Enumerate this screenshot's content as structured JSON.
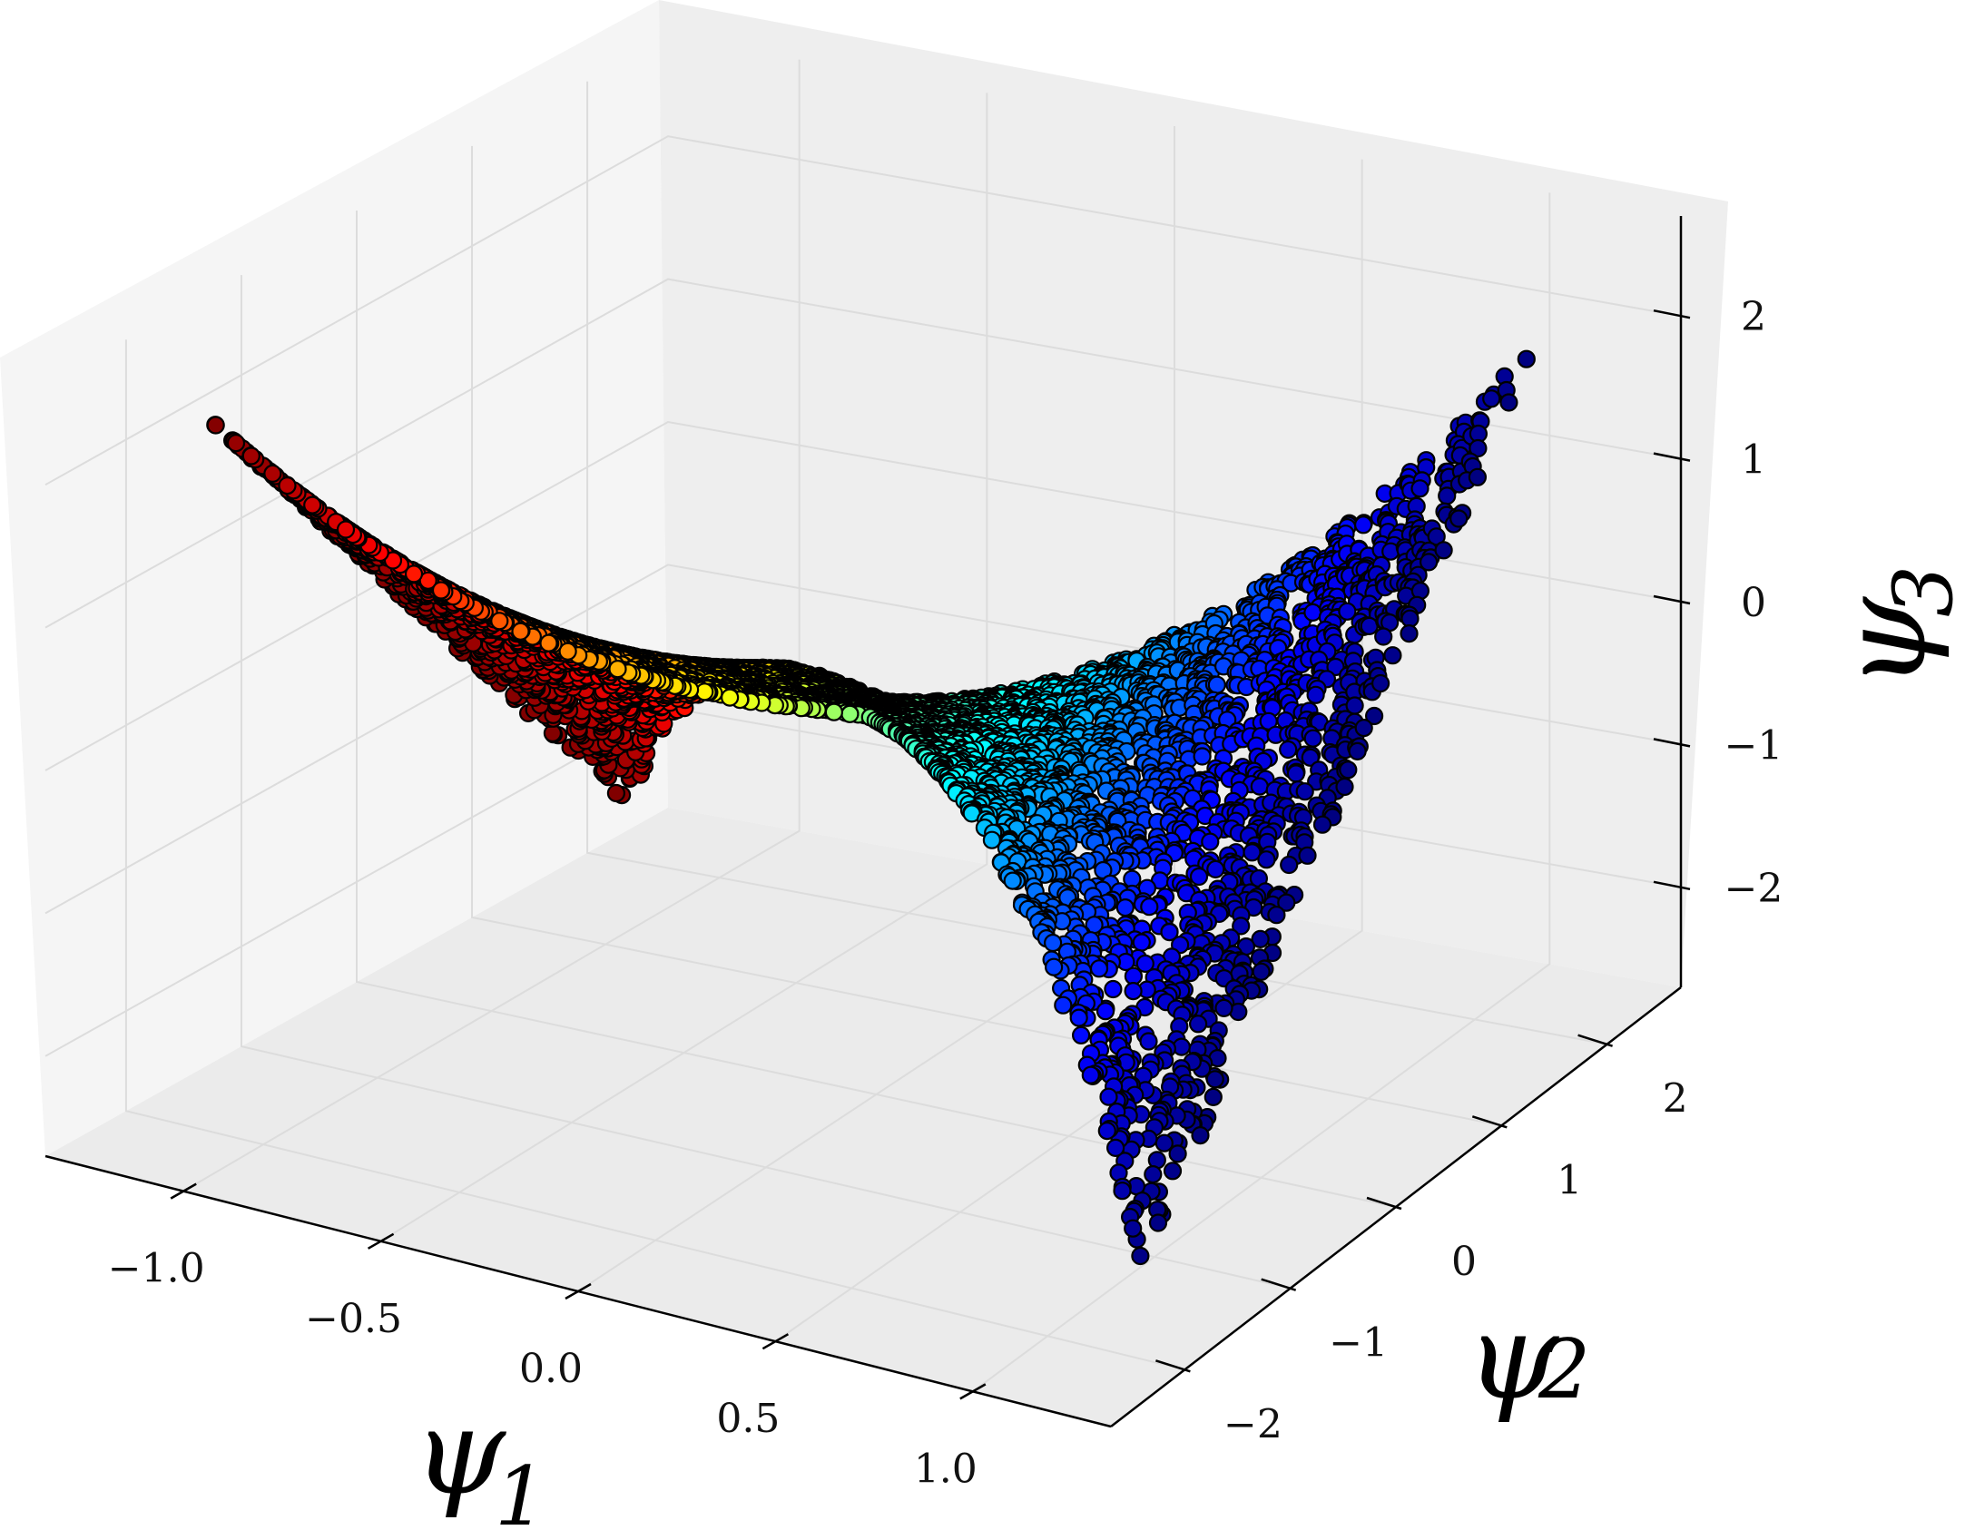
{
  "chart_data": {
    "type": "scatter",
    "projection": "3d",
    "title": "",
    "axes": {
      "x": {
        "label": "ψ",
        "subscript": "1",
        "ticks": [
          "−1.0",
          "−0.5",
          "0.0",
          "0.5",
          "1.0"
        ],
        "tick_values": [
          -1.0,
          -0.5,
          0.0,
          0.5,
          1.0
        ],
        "range": [
          -1.35,
          1.35
        ]
      },
      "y": {
        "label": "ψ",
        "subscript": "2",
        "ticks": [
          "−2",
          "−1",
          "0",
          "1",
          "2"
        ],
        "tick_values": [
          -2,
          -1,
          0,
          1,
          2
        ],
        "range": [
          -2.7,
          2.7
        ]
      },
      "z": {
        "label": "ψ",
        "subscript": "3",
        "ticks": [
          "−2",
          "−1",
          "0",
          "1",
          "2"
        ],
        "tick_values": [
          -2,
          -1,
          0,
          1,
          2
        ],
        "range": [
          -2.7,
          2.7
        ]
      }
    },
    "grid": true,
    "pane_color": "#f1f1f1",
    "grid_color": "#dcdcdc",
    "marker": {
      "shape": "circle",
      "edge_color": "#000000"
    },
    "colormap": "jet",
    "color_by": "x",
    "surface": "saddle, z = x*y",
    "series": [
      {
        "points_sample": [
          {
            "x": -1.2,
            "y": -1.8,
            "z": 2.16
          },
          {
            "x": -1.2,
            "y": 0.0,
            "z": 0.0
          },
          {
            "x": -1.2,
            "y": 1.8,
            "z": -2.16
          },
          {
            "x": -0.6,
            "y": -1.5,
            "z": 0.9
          },
          {
            "x": -0.6,
            "y": 1.5,
            "z": -0.9
          },
          {
            "x": 0.0,
            "y": -1.0,
            "z": 0.0
          },
          {
            "x": 0.0,
            "y": 0.0,
            "z": 0.0
          },
          {
            "x": 0.0,
            "y": 1.0,
            "z": 0.0
          },
          {
            "x": 0.6,
            "y": -1.5,
            "z": -0.9
          },
          {
            "x": 0.6,
            "y": 1.5,
            "z": 0.9
          },
          {
            "x": 1.2,
            "y": -1.8,
            "z": -2.16
          },
          {
            "x": 1.2,
            "y": 0.0,
            "z": 0.0
          },
          {
            "x": 1.2,
            "y": 1.8,
            "z": 2.16
          }
        ]
      }
    ]
  }
}
